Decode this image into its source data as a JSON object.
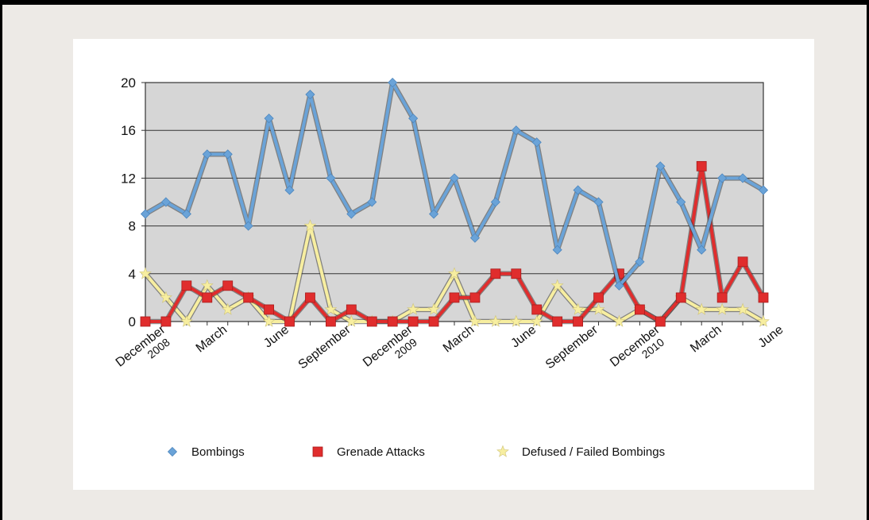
{
  "chart_data": {
    "type": "line",
    "title": "",
    "xlabel": "",
    "ylabel": "",
    "ylim": [
      0,
      20
    ],
    "yticks": [
      0,
      4,
      8,
      12,
      16,
      20
    ],
    "grid": "horizontal",
    "legend_position": "bottom",
    "x_tick_labels": [
      {
        "index": 1,
        "label": "December",
        "year": "2008"
      },
      {
        "index": 4,
        "label": "March"
      },
      {
        "index": 7,
        "label": "June"
      },
      {
        "index": 10,
        "label": "September"
      },
      {
        "index": 13,
        "label": "December",
        "year": "2009"
      },
      {
        "index": 16,
        "label": "March"
      },
      {
        "index": 19,
        "label": "June"
      },
      {
        "index": 22,
        "label": "September"
      },
      {
        "index": 25,
        "label": "December",
        "year": "2010"
      },
      {
        "index": 28,
        "label": "March"
      },
      {
        "index": 31,
        "label": "June"
      }
    ],
    "series": [
      {
        "name": "Bombings",
        "color": "#6aa3d8",
        "marker": "diamond",
        "values": [
          9,
          10,
          9,
          14,
          14,
          8,
          17,
          11,
          19,
          12,
          9,
          10,
          20,
          17,
          9,
          12,
          7,
          10,
          16,
          15,
          6,
          11,
          10,
          3,
          5,
          13,
          10,
          6,
          12,
          12,
          11
        ]
      },
      {
        "name": "Grenade Attacks",
        "color": "#e02d2d",
        "marker": "square",
        "values": [
          0,
          0,
          3,
          2,
          3,
          2,
          1,
          0,
          2,
          0,
          1,
          0,
          0,
          0,
          0,
          2,
          2,
          4,
          4,
          1,
          0,
          0,
          2,
          4,
          1,
          0,
          2,
          13,
          2,
          5,
          2
        ]
      },
      {
        "name": "Defused / Failed Bombings",
        "color": "#f7eea0",
        "marker": "star",
        "values": [
          4,
          2,
          0,
          3,
          1,
          2,
          0,
          0,
          8,
          1,
          0,
          0,
          0,
          1,
          1,
          4,
          0,
          0,
          0,
          0,
          3,
          1,
          1,
          0,
          1,
          0,
          2,
          1,
          1,
          1,
          0
        ]
      }
    ]
  }
}
